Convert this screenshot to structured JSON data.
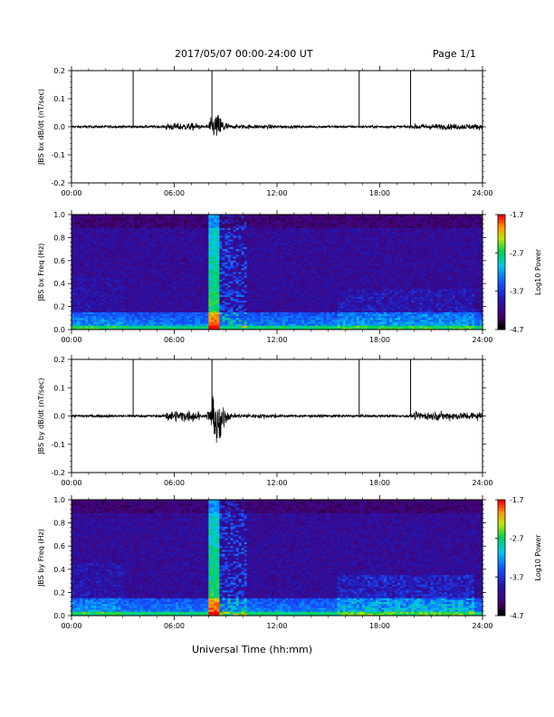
{
  "header": {
    "title": "2017/05/07  00:00-24:00 UT",
    "page": "Page 1/1"
  },
  "footer": {
    "xlabel": "Universal Time (hh:mm)"
  },
  "chart_data": [
    {
      "type": "line",
      "ylabel": "JBS bx dB/dt (nT/sec)",
      "xlim": [
        "00:00",
        "24:00"
      ],
      "xticks": [
        "00:00",
        "06:00",
        "12:00",
        "18:00",
        "24:00"
      ],
      "ylim": [
        -0.2,
        0.2
      ],
      "yticks": [
        "0.2",
        "0.1",
        "0.0",
        "-0.1",
        "-0.2"
      ],
      "series": [
        {
          "x": [
            "00:00",
            "01:00",
            "02:00",
            "03:00",
            "03:36",
            "04:00",
            "05:00",
            "06:00",
            "07:00",
            "08:00",
            "08:12",
            "08:30",
            "09:00",
            "10:00",
            "11:00",
            "12:00",
            "13:00",
            "14:00",
            "15:00",
            "16:00",
            "16:48",
            "17:00",
            "18:00",
            "19:00",
            "20:00",
            "21:00",
            "22:00",
            "23:00",
            "24:00"
          ],
          "y": [
            0.0,
            0.0,
            0.0,
            0.0,
            0.2,
            0.0,
            0.0,
            0.0,
            0.0,
            0.03,
            0.2,
            0.05,
            0.02,
            0.0,
            0.0,
            0.0,
            0.0,
            0.0,
            0.0,
            0.0,
            0.2,
            0.0,
            0.0,
            0.0,
            0.0,
            0.01,
            0.0,
            0.0,
            0.0
          ]
        }
      ],
      "spikes": [
        "03:36",
        "08:12",
        "16:48",
        "19:48"
      ],
      "grid": false
    },
    {
      "type": "heatmap",
      "ylabel": "JBS bx Freq (Hz)",
      "xlim": [
        "00:00",
        "24:00"
      ],
      "xticks": [
        "00:00",
        "06:00",
        "12:00",
        "18:00",
        "24:00"
      ],
      "ylim": [
        0.0,
        1.0
      ],
      "yticks": [
        "1.0",
        "0.8",
        "0.6",
        "0.4",
        "0.2",
        "0.0"
      ],
      "colorbar": {
        "label": "Log10 Power",
        "ticks": [
          "-1.7",
          "-2.7",
          "-3.7",
          "-4.7"
        ],
        "range": [
          -4.7,
          -1.7
        ]
      }
    },
    {
      "type": "line",
      "ylabel": "JBS by dB/dt (nT/sec)",
      "xlim": [
        "00:00",
        "24:00"
      ],
      "xticks": [
        "00:00",
        "06:00",
        "12:00",
        "18:00",
        "24:00"
      ],
      "ylim": [
        -0.2,
        0.2
      ],
      "yticks": [
        "0.2",
        "0.1",
        "0.0",
        "-0.1",
        "-0.2"
      ],
      "series": [
        {
          "x": [
            "00:00",
            "01:00",
            "02:00",
            "03:00",
            "03:36",
            "04:00",
            "05:00",
            "06:00",
            "07:00",
            "08:00",
            "08:12",
            "08:30",
            "09:00",
            "10:00",
            "11:00",
            "12:00",
            "13:00",
            "14:00",
            "15:00",
            "16:00",
            "16:48",
            "17:00",
            "18:00",
            "19:00",
            "20:00",
            "21:00",
            "22:00",
            "23:00",
            "24:00"
          ],
          "y": [
            0.0,
            0.0,
            0.0,
            0.0,
            0.2,
            0.0,
            0.0,
            0.0,
            0.0,
            0.03,
            0.2,
            -0.09,
            0.02,
            0.0,
            0.0,
            0.0,
            0.0,
            0.0,
            0.0,
            0.0,
            0.2,
            0.0,
            0.0,
            0.0,
            0.0,
            0.01,
            0.02,
            0.0,
            0.0
          ]
        }
      ],
      "spikes": [
        "03:36",
        "08:12",
        "16:48",
        "19:48"
      ],
      "grid": false
    },
    {
      "type": "heatmap",
      "ylabel": "JBS by Freq (Hz)",
      "xlim": [
        "00:00",
        "24:00"
      ],
      "xticks": [
        "00:00",
        "06:00",
        "12:00",
        "18:00",
        "24:00"
      ],
      "ylim": [
        0.0,
        1.0
      ],
      "yticks": [
        "1.0",
        "0.8",
        "0.6",
        "0.4",
        "0.2",
        "0.0"
      ],
      "colorbar": {
        "label": "Log10 Power",
        "ticks": [
          "-1.7",
          "-2.7",
          "-3.7",
          "-4.7"
        ],
        "range": [
          -4.7,
          -1.7
        ]
      }
    }
  ]
}
